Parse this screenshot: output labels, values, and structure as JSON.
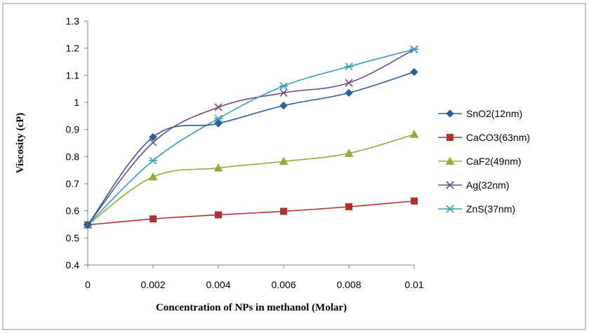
{
  "chart_data": {
    "type": "line",
    "title": "",
    "xlabel": "Concentration  of NPs in methanol  (Molar)",
    "ylabel": "Viscosity (cP)",
    "x": [
      0,
      0.002,
      0.004,
      0.006,
      0.008,
      0.01
    ],
    "x_tick_labels": [
      "0",
      "0.002",
      "0.004",
      "0.006",
      "0.008",
      "0.01"
    ],
    "y_tick_labels": [
      "0.4",
      "0.5",
      "0.6",
      "0.7",
      "0.8",
      "0.9",
      "1",
      "1.1",
      "1.2",
      "1.3"
    ],
    "xlim": [
      0,
      0.01
    ],
    "ylim": [
      0.4,
      1.3
    ],
    "grid": false,
    "legend_position": "right",
    "line_style": "smoothed",
    "series": [
      {
        "name": "SnO2(12nm)",
        "values": [
          0.548,
          0.872,
          0.922,
          0.988,
          1.035,
          1.112
        ],
        "color": "#2e5e9e",
        "marker": "diamond"
      },
      {
        "name": "CaCO3(63nm)",
        "values": [
          0.548,
          0.57,
          0.585,
          0.598,
          0.615,
          0.636
        ],
        "color": "#b0322f",
        "marker": "square"
      },
      {
        "name": "CaF2(49nm)",
        "values": [
          0.548,
          0.725,
          0.758,
          0.782,
          0.812,
          0.882
        ],
        "color": "#8cae3c",
        "marker": "triangle"
      },
      {
        "name": "Ag(32nm)",
        "values": [
          0.548,
          0.852,
          0.982,
          1.035,
          1.072,
          1.195
        ],
        "color": "#6a4c8c",
        "marker": "x"
      },
      {
        "name": "ZnS(37nm)",
        "values": [
          0.548,
          0.785,
          0.94,
          1.06,
          1.132,
          1.196
        ],
        "color": "#3a9fbf",
        "marker": "star"
      }
    ]
  }
}
